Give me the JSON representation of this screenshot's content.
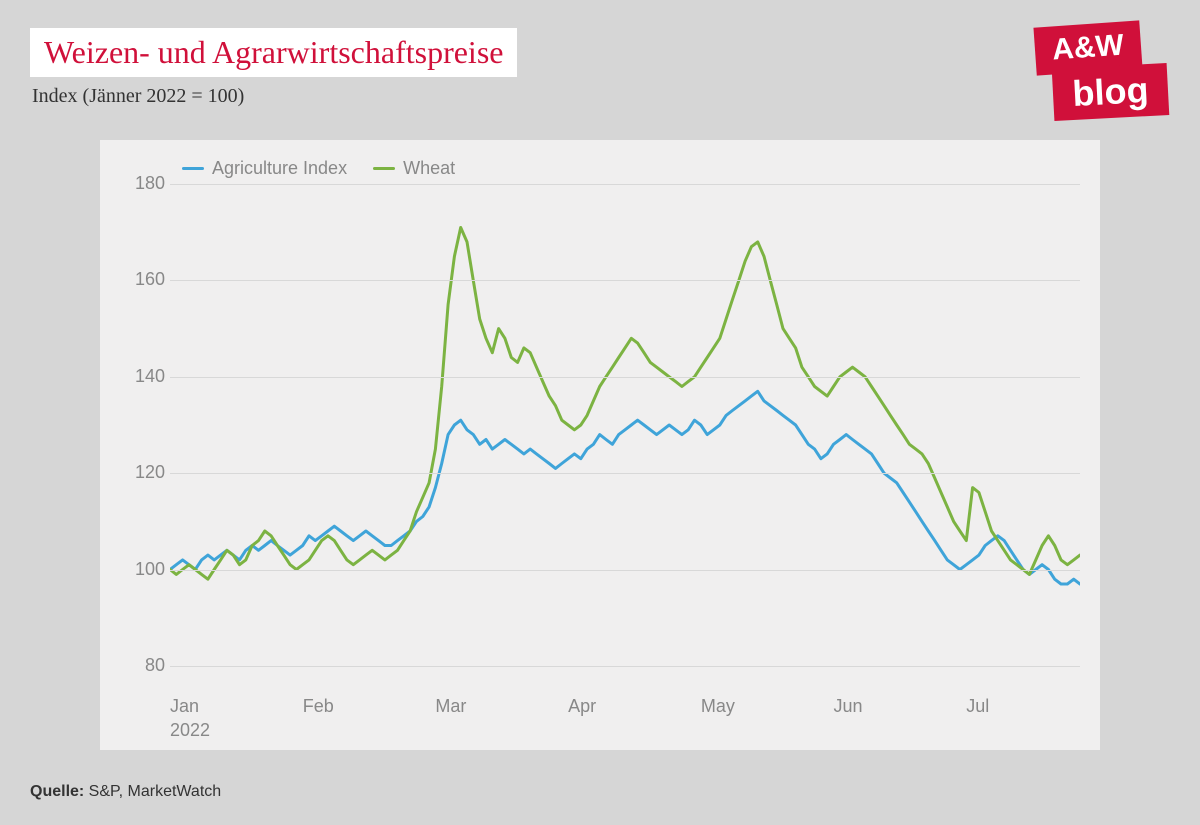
{
  "title": "Weizen- und Agrarwirtschaftspreise",
  "subtitle": "Index (Jänner 2022 = 100)",
  "logo": {
    "top": "A&W",
    "bottom": "blog"
  },
  "source_label": "Quelle:",
  "source_text": " S&P, MarketWatch",
  "chart": {
    "type": "line",
    "background_color": "#f0efef",
    "page_background": "#d6d6d6",
    "grid_color": "#d8d8d8",
    "axis_text_color": "#888888",
    "axis_fontsize": 18,
    "line_width": 3,
    "ylim": [
      75,
      185
    ],
    "yticks": [
      80,
      100,
      120,
      140,
      160,
      180
    ],
    "x_labels": [
      "Jan",
      "Feb",
      "Mar",
      "Apr",
      "May",
      "Jun",
      "Jul"
    ],
    "x_year": "2022",
    "x_count": 145,
    "x_month_len": 21,
    "series": [
      {
        "name": "Agriculture Index",
        "color": "#3fa4d9",
        "values": [
          100,
          101,
          102,
          101,
          100,
          102,
          103,
          102,
          103,
          104,
          103,
          102,
          104,
          105,
          104,
          105,
          106,
          105,
          104,
          103,
          104,
          105,
          107,
          106,
          107,
          108,
          109,
          108,
          107,
          106,
          107,
          108,
          107,
          106,
          105,
          105,
          106,
          107,
          108,
          110,
          111,
          113,
          117,
          122,
          128,
          130,
          131,
          129,
          128,
          126,
          127,
          125,
          126,
          127,
          126,
          125,
          124,
          125,
          124,
          123,
          122,
          121,
          122,
          123,
          124,
          123,
          125,
          126,
          128,
          127,
          126,
          128,
          129,
          130,
          131,
          130,
          129,
          128,
          129,
          130,
          129,
          128,
          129,
          131,
          130,
          128,
          129,
          130,
          132,
          133,
          134,
          135,
          136,
          137,
          135,
          134,
          133,
          132,
          131,
          130,
          128,
          126,
          125,
          123,
          124,
          126,
          127,
          128,
          127,
          126,
          125,
          124,
          122,
          120,
          119,
          118,
          116,
          114,
          112,
          110,
          108,
          106,
          104,
          102,
          101,
          100,
          101,
          102,
          103,
          105,
          106,
          107,
          106,
          104,
          102,
          100,
          99,
          100,
          101,
          100,
          98,
          97,
          97,
          98,
          97
        ]
      },
      {
        "name": "Wheat",
        "color": "#7cb342",
        "values": [
          100,
          99,
          100,
          101,
          100,
          99,
          98,
          100,
          102,
          104,
          103,
          101,
          102,
          105,
          106,
          108,
          107,
          105,
          103,
          101,
          100,
          101,
          102,
          104,
          106,
          107,
          106,
          104,
          102,
          101,
          102,
          103,
          104,
          103,
          102,
          103,
          104,
          106,
          108,
          112,
          115,
          118,
          125,
          138,
          155,
          165,
          171,
          168,
          160,
          152,
          148,
          145,
          150,
          148,
          144,
          143,
          146,
          145,
          142,
          139,
          136,
          134,
          131,
          130,
          129,
          130,
          132,
          135,
          138,
          140,
          142,
          144,
          146,
          148,
          147,
          145,
          143,
          142,
          141,
          140,
          139,
          138,
          139,
          140,
          142,
          144,
          146,
          148,
          152,
          156,
          160,
          164,
          167,
          168,
          165,
          160,
          155,
          150,
          148,
          146,
          142,
          140,
          138,
          137,
          136,
          138,
          140,
          141,
          142,
          141,
          140,
          138,
          136,
          134,
          132,
          130,
          128,
          126,
          125,
          124,
          122,
          119,
          116,
          113,
          110,
          108,
          106,
          117,
          116,
          112,
          108,
          106,
          104,
          102,
          101,
          100,
          99,
          102,
          105,
          107,
          105,
          102,
          101,
          102,
          103
        ]
      }
    ]
  }
}
